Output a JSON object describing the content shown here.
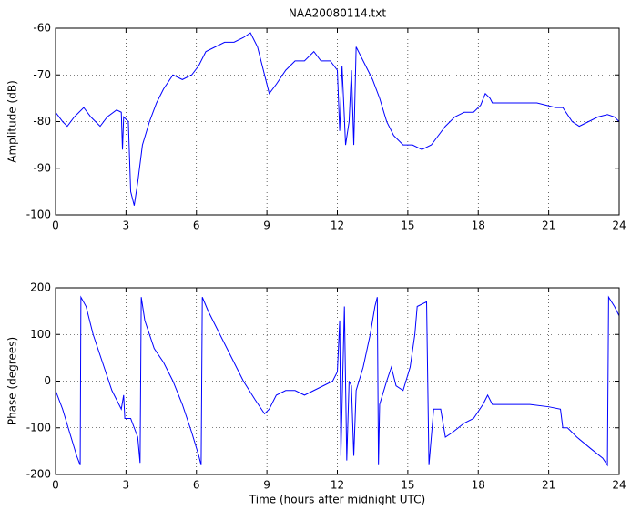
{
  "chart_data": [
    {
      "type": "line",
      "title": "NAA20080114.txt",
      "ylabel": "Amplitude (dB)",
      "color": "#0000ff",
      "grid": true,
      "xlim": [
        0,
        24
      ],
      "xticks": [
        0,
        3,
        6,
        9,
        12,
        15,
        18,
        21,
        24
      ],
      "ylim": [
        -100,
        -60
      ],
      "yticks": [
        -100,
        -90,
        -80,
        -70,
        -60
      ],
      "x": [
        0,
        0.3,
        0.5,
        0.8,
        1.2,
        1.5,
        1.9,
        2.2,
        2.6,
        2.8,
        2.85,
        2.9,
        3.1,
        3.2,
        3.35,
        3.5,
        3.7,
        4.0,
        4.3,
        4.6,
        5.0,
        5.4,
        5.8,
        6.1,
        6.4,
        6.8,
        7.2,
        7.6,
        8.0,
        8.3,
        8.6,
        8.9,
        9.1,
        9.4,
        9.8,
        10.2,
        10.6,
        11.0,
        11.3,
        11.7,
        12.0,
        12.1,
        12.2,
        12.35,
        12.5,
        12.6,
        12.7,
        12.8,
        13.1,
        13.5,
        13.8,
        14.1,
        14.4,
        14.8,
        15.2,
        15.6,
        16.0,
        16.3,
        16.6,
        17.0,
        17.4,
        17.8,
        18.1,
        18.3,
        18.5,
        18.6,
        19.5,
        20.5,
        21.3,
        21.6,
        22.0,
        22.3,
        22.7,
        23.1,
        23.5,
        23.8,
        24
      ],
      "values": [
        -78,
        -80,
        -81,
        -79,
        -77,
        -79,
        -81,
        -79,
        -77.5,
        -78,
        -86,
        -79,
        -80,
        -95,
        -98,
        -93,
        -85,
        -80,
        -76,
        -73,
        -70,
        -71,
        -70,
        -68,
        -65,
        -64,
        -63,
        -63,
        -62,
        -61,
        -64,
        -70,
        -74,
        -72,
        -69,
        -67,
        -67,
        -65,
        -67,
        -67,
        -69,
        -82,
        -68,
        -85,
        -80,
        -69,
        -85,
        -64,
        -67,
        -71,
        -75,
        -80,
        -83,
        -85,
        -85,
        -86,
        -85,
        -83,
        -81,
        -79,
        -78,
        -78,
        -76.5,
        -74,
        -75,
        -76,
        -76,
        -76,
        -77,
        -77,
        -80,
        -81,
        -80,
        -79,
        -78.5,
        -79,
        -80
      ]
    },
    {
      "type": "line",
      "xlabel": "Time (hours after midnight UTC)",
      "ylabel": "Phase (degrees)",
      "color": "#0000ff",
      "grid": true,
      "xlim": [
        0,
        24
      ],
      "xticks": [
        0,
        3,
        6,
        9,
        12,
        15,
        18,
        21,
        24
      ],
      "ylim": [
        -200,
        200
      ],
      "yticks": [
        -200,
        -100,
        0,
        100,
        200
      ],
      "x": [
        0,
        0.3,
        0.6,
        0.9,
        1.05,
        1.08,
        1.3,
        1.6,
        2.0,
        2.4,
        2.8,
        2.9,
        2.95,
        3.2,
        3.5,
        3.6,
        3.65,
        3.8,
        4.2,
        4.6,
        5.0,
        5.4,
        5.8,
        6.1,
        6.2,
        6.25,
        6.5,
        7.0,
        7.5,
        8.0,
        8.5,
        8.9,
        9.1,
        9.4,
        9.8,
        10.2,
        10.6,
        11.0,
        11.4,
        11.8,
        12.0,
        12.1,
        12.15,
        12.3,
        12.4,
        12.5,
        12.6,
        12.7,
        12.8,
        13.1,
        13.4,
        13.6,
        13.7,
        13.75,
        13.8,
        14.1,
        14.3,
        14.5,
        14.8,
        15.1,
        15.3,
        15.4,
        15.8,
        15.9,
        16.1,
        16.4,
        16.6,
        16.9,
        17.4,
        17.8,
        18.2,
        18.4,
        18.6,
        19.3,
        20.2,
        21.0,
        21.5,
        21.6,
        21.8,
        22.2,
        22.8,
        23.3,
        23.5,
        23.55,
        23.8,
        24
      ],
      "values": [
        -20,
        -60,
        -110,
        -160,
        -180,
        180,
        160,
        100,
        40,
        -20,
        -60,
        -30,
        -80,
        -80,
        -120,
        -175,
        180,
        130,
        70,
        40,
        0,
        -50,
        -110,
        -160,
        -180,
        180,
        150,
        100,
        50,
        0,
        -40,
        -70,
        -60,
        -30,
        -20,
        -20,
        -30,
        -20,
        -10,
        0,
        20,
        130,
        -160,
        160,
        -170,
        0,
        -10,
        -160,
        -20,
        30,
        100,
        160,
        180,
        -180,
        -50,
        0,
        30,
        -10,
        -20,
        30,
        100,
        160,
        170,
        -180,
        -60,
        -60,
        -120,
        -110,
        -90,
        -80,
        -50,
        -30,
        -50,
        -50,
        -50,
        -55,
        -60,
        -100,
        -100,
        -120,
        -145,
        -165,
        -180,
        180,
        160,
        140
      ]
    }
  ]
}
